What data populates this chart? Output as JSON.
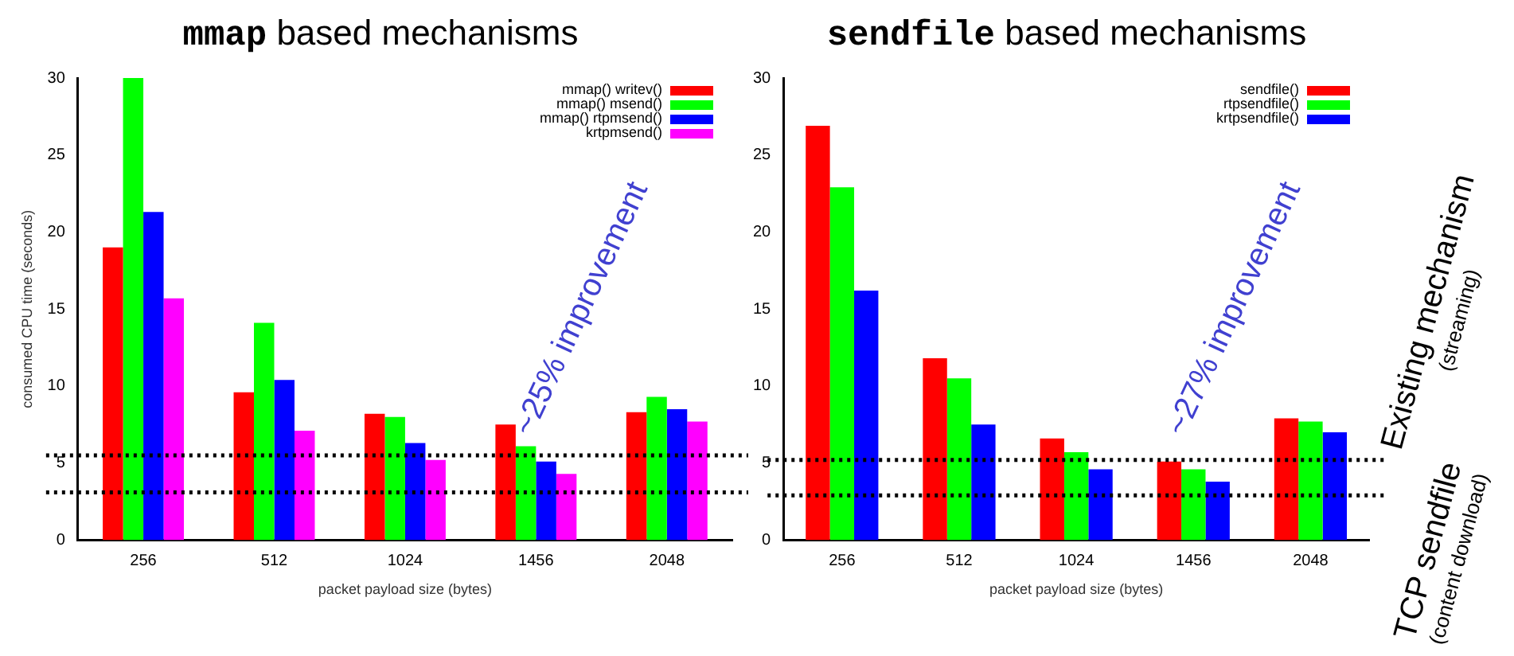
{
  "chart_data": [
    {
      "type": "bar",
      "title": "mmap based mechanisms",
      "xlabel": "packet payload size (bytes)",
      "ylabel": "consumed CPU time (seconds)",
      "categories": [
        "256",
        "512",
        "1024",
        "1456",
        "2048"
      ],
      "series": [
        {
          "name": "mmap() writev()",
          "color": "#ff0000",
          "values": [
            19.0,
            9.6,
            8.2,
            7.5,
            8.3
          ]
        },
        {
          "name": "mmap() msend()",
          "color": "#00ff00",
          "values": [
            30.0,
            14.1,
            8.0,
            6.1,
            9.3
          ]
        },
        {
          "name": "mmap() rtpmsend()",
          "color": "#0000ff",
          "values": [
            21.3,
            10.4,
            6.3,
            5.1,
            8.5
          ]
        },
        {
          "name": "krtpmsend()",
          "color": "#ff00ff",
          "values": [
            15.7,
            7.1,
            5.2,
            4.3,
            7.7
          ]
        }
      ],
      "ylim": [
        0,
        30
      ],
      "yticks": [
        0,
        5,
        10,
        15,
        20,
        25,
        30
      ],
      "grid": false,
      "legend": "top right",
      "ref_lines": [
        {
          "axis": "y",
          "value": 5.5,
          "line_style": "dotted",
          "color": "#000000"
        },
        {
          "axis": "y",
          "value": 3.1,
          "line_style": "dotted",
          "color": "#000000"
        }
      ],
      "annotations": [
        "~25% improvement"
      ]
    },
    {
      "type": "bar",
      "title": "sendfile based mechanisms",
      "xlabel": "packet payload size (bytes)",
      "categories": [
        "256",
        "512",
        "1024",
        "1456",
        "2048"
      ],
      "series": [
        {
          "name": "sendfile()",
          "color": "#ff0000",
          "values": [
            26.9,
            11.8,
            6.6,
            5.1,
            7.9
          ]
        },
        {
          "name": "rtpsendfile()",
          "color": "#00ff00",
          "values": [
            22.9,
            10.5,
            5.7,
            4.6,
            7.7
          ]
        },
        {
          "name": "krtpsendfile()",
          "color": "#0000ff",
          "values": [
            16.2,
            7.5,
            4.6,
            3.8,
            7.0
          ]
        }
      ],
      "ylim": [
        0,
        30
      ],
      "yticks": [
        0,
        5,
        10,
        15,
        20,
        25,
        30
      ],
      "grid": false,
      "legend": "top right",
      "ref_lines": [
        {
          "axis": "y",
          "value": 5.2,
          "line_style": "dotted",
          "color": "#000000"
        },
        {
          "axis": "y",
          "value": 2.9,
          "line_style": "dotted",
          "color": "#000000"
        }
      ],
      "annotations": [
        "~27% improvement",
        "Existing mechanism",
        "(streaming)",
        "TCP sendfile",
        "(content download)"
      ]
    }
  ]
}
